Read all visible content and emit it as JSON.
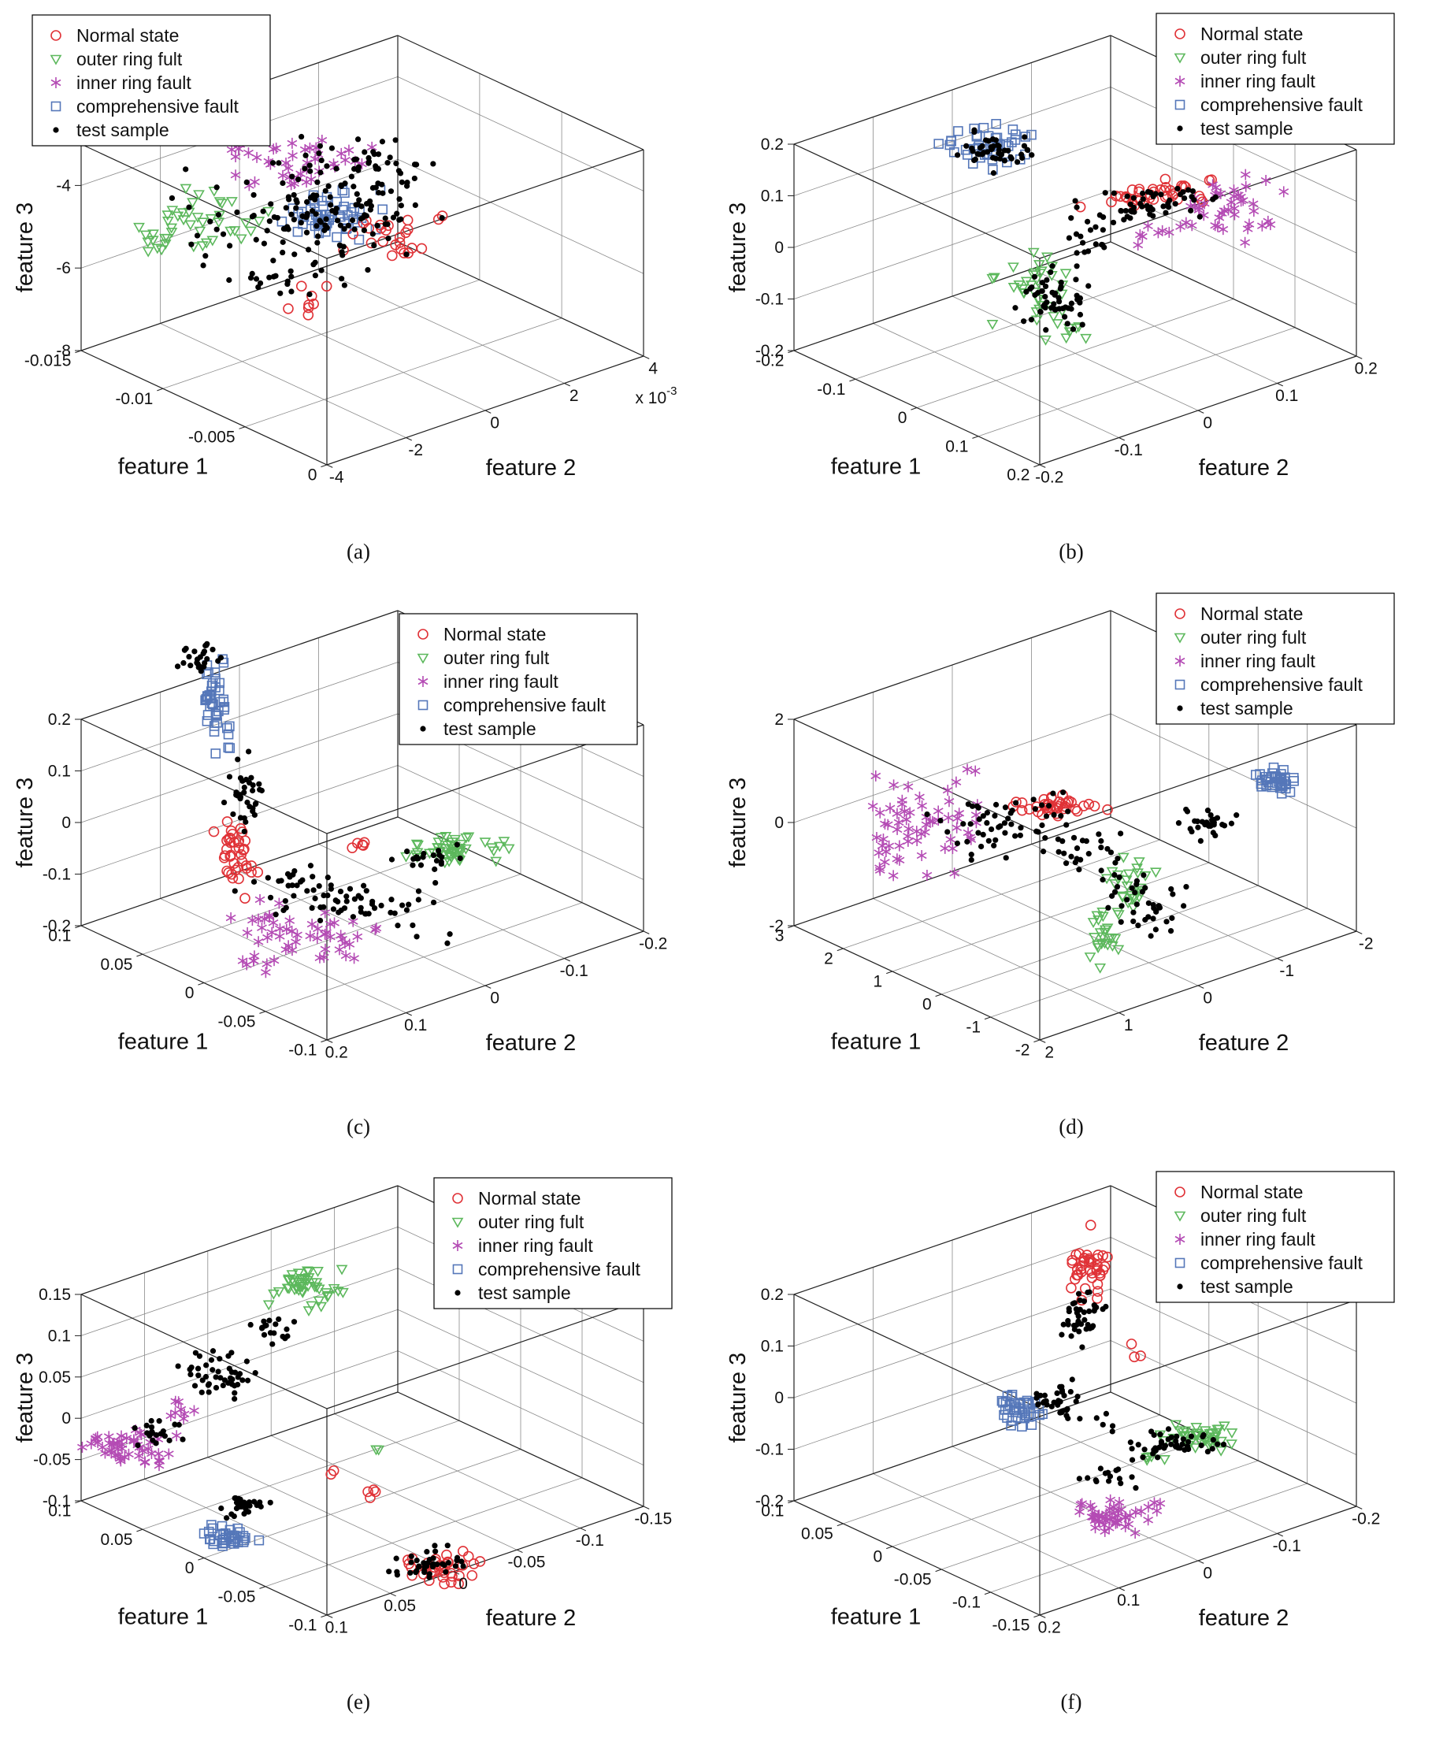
{
  "series": [
    {
      "name": "Normal state",
      "marker": "circle",
      "color": "#e03237"
    },
    {
      "name": "outer ring fult",
      "marker": "triangle-down",
      "color": "#5cb85c"
    },
    {
      "name": "inner ring fault",
      "marker": "asterisk",
      "color": "#b44bb4"
    },
    {
      "name": "comprehensive fault",
      "marker": "square",
      "color": "#5577b9"
    },
    {
      "name": "test sample",
      "marker": "dot",
      "color": "#000000"
    }
  ],
  "chart_data": [
    {
      "id": "a",
      "caption": "(a)",
      "type": "scatter3d",
      "xlabel": "feature 1",
      "ylabel": "feature 2",
      "zlabel": "feature 3",
      "xlim": [
        -0.015,
        0
      ],
      "ylim": [
        -0.004,
        0.004
      ],
      "zlim": [
        -8,
        -4
      ],
      "x_ticks": {
        "labels": [
          "0",
          "-0.005",
          "-0.01",
          "-0.015"
        ],
        "f": [
          0,
          0.333,
          0.667,
          1
        ]
      },
      "y_ticks": {
        "labels": [
          "-4",
          "-2",
          "0",
          "2",
          "4"
        ],
        "f": [
          0,
          0.25,
          0.5,
          0.75,
          1
        ]
      },
      "z_ticks": {
        "labels": [
          "-8",
          "-6",
          "-4"
        ],
        "f": [
          0,
          0.4,
          0.8
        ]
      },
      "y_exp": {
        "base": "x 10",
        "sup": "-3"
      },
      "clusters": [
        {
          "s": 1,
          "x": 0.27,
          "y": 0.4,
          "sx": 0.075,
          "sy": 0.05,
          "n": 35
        },
        {
          "s": 1,
          "x": 0.205,
          "y": 0.435,
          "sx": 0.03,
          "sy": 0.028,
          "n": 10
        },
        {
          "s": 2,
          "x": 0.42,
          "y": 0.295,
          "sx": 0.11,
          "sy": 0.055,
          "n": 40
        },
        {
          "s": 2,
          "x": 0.33,
          "y": 0.25,
          "sx": 0.04,
          "sy": 0.03,
          "n": 8
        },
        {
          "s": 3,
          "x": 0.465,
          "y": 0.4,
          "sx": 0.055,
          "sy": 0.045,
          "n": 55
        },
        {
          "s": 0,
          "x": 0.555,
          "y": 0.44,
          "sx": 0.065,
          "sy": 0.04,
          "n": 25
        },
        {
          "s": 0,
          "x": 0.44,
          "y": 0.56,
          "sx": 0.04,
          "sy": 0.025,
          "n": 8
        },
        {
          "s": 4,
          "x": 0.44,
          "y": 0.385,
          "sx": 0.15,
          "sy": 0.1,
          "n": 150
        },
        {
          "s": 4,
          "x": 0.52,
          "y": 0.3,
          "sx": 0.08,
          "sy": 0.04,
          "n": 30
        },
        {
          "s": 4,
          "x": 0.38,
          "y": 0.52,
          "sx": 0.08,
          "sy": 0.03,
          "n": 20
        }
      ]
    },
    {
      "id": "b",
      "caption": "(b)",
      "type": "scatter3d",
      "xlabel": "feature 1",
      "ylabel": "feature 2",
      "zlabel": "feature 3",
      "xlim": [
        -0.2,
        0.2
      ],
      "ylim": [
        -0.2,
        0.2
      ],
      "zlim": [
        -0.2,
        0.2
      ],
      "x_ticks": {
        "labels": [
          "0.2",
          "0.1",
          "0",
          "-0.1",
          "-0.2"
        ],
        "f": [
          0,
          0.25,
          0.5,
          0.75,
          1
        ]
      },
      "y_ticks": {
        "labels": [
          "-0.2",
          "-0.1",
          "0",
          "0.1",
          "0.2"
        ],
        "f": [
          0,
          0.25,
          0.5,
          0.75,
          1
        ]
      },
      "z_ticks": {
        "labels": [
          "-0.2",
          "-0.1",
          "0",
          "0.1",
          "0.2"
        ],
        "f": [
          0,
          0.25,
          0.5,
          0.75,
          1
        ]
      },
      "clusters": [
        {
          "s": 3,
          "x": 0.375,
          "y": 0.27,
          "sx": 0.055,
          "sy": 0.035,
          "n": 45
        },
        {
          "s": 0,
          "x": 0.625,
          "y": 0.355,
          "sx": 0.075,
          "sy": 0.02,
          "n": 38,
          "rot": -8
        },
        {
          "s": 2,
          "x": 0.73,
          "y": 0.375,
          "sx": 0.065,
          "sy": 0.05,
          "n": 42
        },
        {
          "s": 2,
          "x": 0.62,
          "y": 0.42,
          "sx": 0.03,
          "sy": 0.03,
          "n": 8
        },
        {
          "s": 1,
          "x": 0.455,
          "y": 0.52,
          "sx": 0.055,
          "sy": 0.055,
          "n": 35
        },
        {
          "s": 1,
          "x": 0.5,
          "y": 0.62,
          "sx": 0.03,
          "sy": 0.03,
          "n": 8
        },
        {
          "s": 4,
          "x": 0.39,
          "y": 0.275,
          "sx": 0.05,
          "sy": 0.03,
          "n": 45
        },
        {
          "s": 4,
          "x": 0.6,
          "y": 0.375,
          "sx": 0.1,
          "sy": 0.025,
          "n": 55,
          "rot": -8
        },
        {
          "s": 4,
          "x": 0.475,
          "y": 0.55,
          "sx": 0.05,
          "sy": 0.055,
          "n": 55
        },
        {
          "s": 4,
          "x": 0.52,
          "y": 0.44,
          "sx": 0.03,
          "sy": 0.04,
          "n": 15
        }
      ]
    },
    {
      "id": "c",
      "caption": "(c)",
      "type": "scatter3d",
      "xlabel": "feature 1",
      "ylabel": "feature 2",
      "zlabel": "feature 3",
      "xlim": [
        -0.1,
        0.1
      ],
      "ylim": [
        -0.2,
        0.2
      ],
      "zlim": [
        -0.2,
        0.2
      ],
      "x_ticks": {
        "labels": [
          "-0.1",
          "-0.05",
          "0",
          "0.05",
          "0.1"
        ],
        "f": [
          0,
          0.25,
          0.5,
          0.75,
          1
        ]
      },
      "y_ticks": {
        "labels": [
          "0.2",
          "0.1",
          "0",
          "-0.1",
          "-0.2"
        ],
        "f": [
          0,
          0.25,
          0.5,
          0.75,
          1
        ]
      },
      "z_ticks": {
        "labels": [
          "-0.2",
          "-0.1",
          "0",
          "0.1",
          "0.2"
        ],
        "f": [
          0,
          0.25,
          0.5,
          0.75,
          1
        ]
      },
      "clusters": [
        {
          "s": 3,
          "x": 0.295,
          "y": 0.225,
          "sx": 0.018,
          "sy": 0.075,
          "n": 45
        },
        {
          "s": 0,
          "x": 0.325,
          "y": 0.52,
          "sx": 0.025,
          "sy": 0.055,
          "n": 38
        },
        {
          "s": 0,
          "x": 0.5,
          "y": 0.5,
          "sx": 0.02,
          "sy": 0.015,
          "n": 5
        },
        {
          "s": 2,
          "x": 0.42,
          "y": 0.66,
          "sx": 0.09,
          "sy": 0.045,
          "n": 48,
          "rot": 12
        },
        {
          "s": 2,
          "x": 0.36,
          "y": 0.72,
          "sx": 0.03,
          "sy": 0.02,
          "n": 8
        },
        {
          "s": 1,
          "x": 0.625,
          "y": 0.505,
          "sx": 0.055,
          "sy": 0.025,
          "n": 45
        },
        {
          "s": 1,
          "x": 0.7,
          "y": 0.5,
          "sx": 0.02,
          "sy": 0.015,
          "n": 5
        },
        {
          "s": 4,
          "x": 0.27,
          "y": 0.145,
          "sx": 0.035,
          "sy": 0.03,
          "n": 25
        },
        {
          "s": 4,
          "x": 0.34,
          "y": 0.4,
          "sx": 0.025,
          "sy": 0.055,
          "n": 35
        },
        {
          "s": 4,
          "x": 0.47,
          "y": 0.6,
          "sx": 0.13,
          "sy": 0.045,
          "n": 75,
          "rot": 8
        },
        {
          "s": 4,
          "x": 0.6,
          "y": 0.52,
          "sx": 0.05,
          "sy": 0.02,
          "n": 20
        }
      ]
    },
    {
      "id": "d",
      "caption": "(d)",
      "type": "scatter3d",
      "xlabel": "feature 1",
      "ylabel": "feature 2",
      "zlabel": "feature 3",
      "xlim": [
        -2,
        3
      ],
      "ylim": [
        -2,
        2
      ],
      "zlim": [
        -2,
        2
      ],
      "x_ticks": {
        "labels": [
          "-2",
          "-1",
          "0",
          "1",
          "2",
          "3"
        ],
        "f": [
          0,
          0.2,
          0.4,
          0.6,
          0.8,
          1
        ]
      },
      "y_ticks": {
        "labels": [
          "2",
          "1",
          "0",
          "-1",
          "-2"
        ],
        "f": [
          0,
          0.25,
          0.5,
          0.75,
          1
        ]
      },
      "z_ticks": {
        "labels": [
          "-2",
          "0",
          "2"
        ],
        "f": [
          0,
          0.5,
          1
        ]
      },
      "clusters": [
        {
          "s": 2,
          "x": 0.295,
          "y": 0.455,
          "sx": 0.075,
          "sy": 0.075,
          "n": 55
        },
        {
          "s": 2,
          "x": 0.24,
          "y": 0.52,
          "sx": 0.03,
          "sy": 0.03,
          "n": 10
        },
        {
          "s": 0,
          "x": 0.475,
          "y": 0.425,
          "sx": 0.06,
          "sy": 0.018,
          "n": 38
        },
        {
          "s": 1,
          "x": 0.585,
          "y": 0.565,
          "sx": 0.035,
          "sy": 0.04,
          "n": 25
        },
        {
          "s": 1,
          "x": 0.555,
          "y": 0.67,
          "sx": 0.025,
          "sy": 0.045,
          "n": 25
        },
        {
          "s": 3,
          "x": 0.795,
          "y": 0.375,
          "sx": 0.022,
          "sy": 0.02,
          "n": 40
        },
        {
          "s": 4,
          "x": 0.42,
          "y": 0.46,
          "sx": 0.1,
          "sy": 0.06,
          "n": 60
        },
        {
          "s": 4,
          "x": 0.7,
          "y": 0.455,
          "sx": 0.035,
          "sy": 0.025,
          "n": 30
        },
        {
          "s": 4,
          "x": 0.6,
          "y": 0.6,
          "sx": 0.05,
          "sy": 0.05,
          "n": 40
        },
        {
          "s": 4,
          "x": 0.52,
          "y": 0.52,
          "sx": 0.06,
          "sy": 0.04,
          "n": 20
        }
      ]
    },
    {
      "id": "e",
      "caption": "(e)",
      "type": "scatter3d",
      "xlabel": "feature 1",
      "ylabel": "feature 2",
      "zlabel": "feature 3",
      "xlim": [
        -0.1,
        0.1
      ],
      "ylim": [
        -0.15,
        0.1
      ],
      "zlim": [
        -0.1,
        0.15
      ],
      "x_ticks": {
        "labels": [
          "-0.1",
          "-0.05",
          "0",
          "0.05",
          "0.1"
        ],
        "f": [
          0,
          0.25,
          0.5,
          0.75,
          1
        ]
      },
      "y_ticks": {
        "labels": [
          "0.1",
          "0.05",
          "0",
          "-0.05",
          "-0.1",
          "-0.15"
        ],
        "f": [
          0,
          0.2,
          0.4,
          0.6,
          0.8,
          1
        ]
      },
      "z_ticks": {
        "labels": [
          "-0.1",
          "-0.05",
          "0",
          "0.05",
          "0.1",
          "0.15"
        ],
        "f": [
          0,
          0.2,
          0.4,
          0.6,
          0.8,
          1
        ]
      },
      "clusters": [
        {
          "s": 1,
          "x": 0.425,
          "y": 0.245,
          "sx": 0.04,
          "sy": 0.035,
          "n": 45
        },
        {
          "s": 1,
          "x": 0.52,
          "y": 0.55,
          "sx": 0.012,
          "sy": 0.012,
          "n": 2
        },
        {
          "s": 2,
          "x": 0.165,
          "y": 0.55,
          "sx": 0.055,
          "sy": 0.035,
          "n": 48,
          "rot": 10
        },
        {
          "s": 2,
          "x": 0.25,
          "y": 0.48,
          "sx": 0.025,
          "sy": 0.02,
          "n": 8
        },
        {
          "s": 3,
          "x": 0.315,
          "y": 0.715,
          "sx": 0.03,
          "sy": 0.018,
          "n": 38
        },
        {
          "s": 0,
          "x": 0.625,
          "y": 0.775,
          "sx": 0.055,
          "sy": 0.028,
          "n": 38,
          "rot": -8
        },
        {
          "s": 0,
          "x": 0.52,
          "y": 0.63,
          "sx": 0.02,
          "sy": 0.03,
          "n": 4
        },
        {
          "s": 0,
          "x": 0.46,
          "y": 0.6,
          "sx": 0.01,
          "sy": 0.01,
          "n": 2
        },
        {
          "s": 4,
          "x": 0.3,
          "y": 0.41,
          "sx": 0.055,
          "sy": 0.045,
          "n": 45,
          "rot": 25
        },
        {
          "s": 4,
          "x": 0.38,
          "y": 0.32,
          "sx": 0.03,
          "sy": 0.025,
          "n": 18
        },
        {
          "s": 4,
          "x": 0.2,
          "y": 0.52,
          "sx": 0.04,
          "sy": 0.03,
          "n": 20
        },
        {
          "s": 4,
          "x": 0.335,
          "y": 0.655,
          "sx": 0.035,
          "sy": 0.02,
          "n": 30
        },
        {
          "s": 4,
          "x": 0.6,
          "y": 0.765,
          "sx": 0.05,
          "sy": 0.025,
          "n": 40,
          "rot": -8
        }
      ]
    },
    {
      "id": "f",
      "caption": "(f)",
      "type": "scatter3d",
      "xlabel": "feature 1",
      "ylabel": "feature 2",
      "zlabel": "feature 3",
      "xlim": [
        -0.15,
        0.1
      ],
      "ylim": [
        -0.2,
        0.2
      ],
      "zlim": [
        -0.2,
        0.2
      ],
      "x_ticks": {
        "labels": [
          "-0.15",
          "-0.1",
          "-0.05",
          "0",
          "0.05",
          "0.1"
        ],
        "f": [
          0,
          0.2,
          0.4,
          0.6,
          0.8,
          1
        ]
      },
      "y_ticks": {
        "labels": [
          "0.2",
          "0.1",
          "0",
          "-0.1",
          "-0.2"
        ],
        "f": [
          0,
          0.25,
          0.5,
          0.75,
          1
        ]
      },
      "z_ticks": {
        "labels": [
          "-0.2",
          "-0.1",
          "0",
          "0.1",
          "0.2"
        ],
        "f": [
          0,
          0.25,
          0.5,
          0.75,
          1
        ]
      },
      "clusters": [
        {
          "s": 0,
          "x": 0.525,
          "y": 0.215,
          "sx": 0.028,
          "sy": 0.05,
          "n": 40
        },
        {
          "s": 0,
          "x": 0.595,
          "y": 0.375,
          "sx": 0.025,
          "sy": 0.02,
          "n": 3
        },
        {
          "s": 0,
          "x": 0.53,
          "y": 0.13,
          "sx": 0.01,
          "sy": 0.01,
          "n": 1
        },
        {
          "s": 3,
          "x": 0.425,
          "y": 0.475,
          "sx": 0.028,
          "sy": 0.028,
          "n": 40
        },
        {
          "s": 1,
          "x": 0.685,
          "y": 0.525,
          "sx": 0.05,
          "sy": 0.022,
          "n": 42
        },
        {
          "s": 1,
          "x": 0.62,
          "y": 0.565,
          "sx": 0.02,
          "sy": 0.015,
          "n": 5
        },
        {
          "s": 2,
          "x": 0.555,
          "y": 0.675,
          "sx": 0.04,
          "sy": 0.025,
          "n": 45
        },
        {
          "s": 2,
          "x": 0.625,
          "y": 0.655,
          "sx": 0.015,
          "sy": 0.012,
          "n": 4
        },
        {
          "s": 4,
          "x": 0.515,
          "y": 0.3,
          "sx": 0.025,
          "sy": 0.045,
          "n": 40
        },
        {
          "s": 4,
          "x": 0.475,
          "y": 0.455,
          "sx": 0.03,
          "sy": 0.035,
          "n": 35
        },
        {
          "s": 4,
          "x": 0.645,
          "y": 0.54,
          "sx": 0.06,
          "sy": 0.03,
          "n": 45
        },
        {
          "s": 4,
          "x": 0.56,
          "y": 0.6,
          "sx": 0.04,
          "sy": 0.02,
          "n": 15
        },
        {
          "s": 4,
          "x": 0.545,
          "y": 0.5,
          "sx": 0.02,
          "sy": 0.015,
          "n": 5
        }
      ]
    }
  ]
}
